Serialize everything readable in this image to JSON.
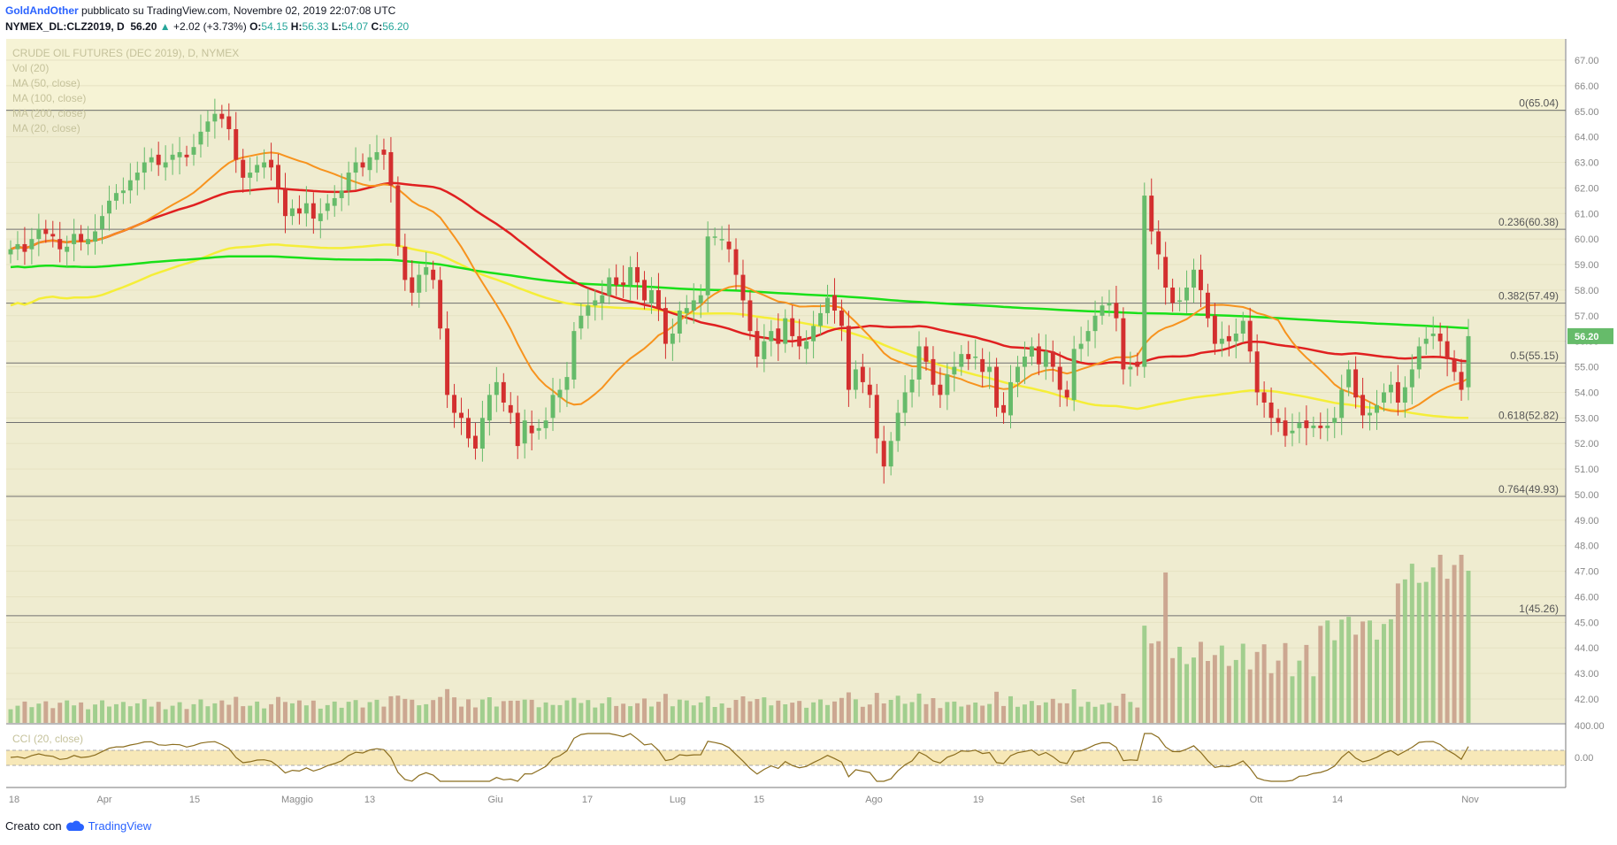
{
  "header": {
    "author": "GoldAndOther",
    "published": "pubblicato su TradingView.com, Novembre 02, 2019 22:07:08 UTC",
    "symbol": "NYMEX_DL:CLZ2019, D",
    "last": "56.20",
    "change": "+2.02 (+3.73%)",
    "o_label": "O:",
    "o": "54.15",
    "h_label": "H:",
    "h": "56.33",
    "l_label": "L:",
    "l": "54.07",
    "c_label": "C:",
    "c": "56.20"
  },
  "legend": {
    "title": "CRUDE OIL FUTURES (DEC 2019), D, NYMEX",
    "items": [
      "Vol (20)",
      "MA (50, close)",
      "MA (100, close)",
      "MA (200, close)",
      "MA (20, close)"
    ]
  },
  "cci_label": "CCI (20, close)",
  "footer": {
    "prefix": "Creato con",
    "brand": "TradingView"
  },
  "colors": {
    "up": "#66bb6a",
    "down": "#d32f2f",
    "ma20": "#f7931e",
    "ma50": "#e02020",
    "ma100": "#f5ee38",
    "ma200": "#19e019",
    "fib": "#707070",
    "pane_bg": "#efecd0",
    "cci_band": "#f7e8b8"
  },
  "chart_data": {
    "type": "candlestick",
    "title": "CRUDE OIL FUTURES (DEC 2019), D, NYMEX",
    "ylim": [
      41.3,
      67.8
    ],
    "y_ticks": [
      "42.00",
      "43.00",
      "44.00",
      "45.00",
      "46.00",
      "47.00",
      "48.00",
      "49.00",
      "50.00",
      "51.00",
      "52.00",
      "53.00",
      "54.00",
      "55.00",
      "56.00",
      "57.00",
      "58.00",
      "59.00",
      "60.00",
      "61.00",
      "62.00",
      "63.00",
      "64.00",
      "65.00",
      "66.00",
      "67.00"
    ],
    "x_labels": [
      "18",
      "Apr",
      "15",
      "Maggio",
      "13",
      "Giu",
      "17",
      "Lug",
      "15",
      "Ago",
      "19",
      "Set",
      "16",
      "Ott",
      "14",
      "Nov"
    ],
    "last_price_label": "56.20",
    "fib_levels": [
      {
        "ratio": "0",
        "price": 65.04,
        "label": "0(65.04)"
      },
      {
        "ratio": "0.236",
        "price": 60.38,
        "label": "0.236(60.38)"
      },
      {
        "ratio": "0.382",
        "price": 57.49,
        "label": "0.382(57.49)"
      },
      {
        "ratio": "0.5",
        "price": 55.15,
        "label": "0.5(55.15)"
      },
      {
        "ratio": "0.618",
        "price": 52.82,
        "label": "0.618(52.82)"
      },
      {
        "ratio": "0.764",
        "price": 49.93,
        "label": "0.764(49.93)"
      },
      {
        "ratio": "1",
        "price": 45.26,
        "label": "1(45.26)"
      }
    ],
    "closes": [
      59.6,
      59.8,
      59.5,
      60.0,
      60.4,
      60.2,
      60.1,
      59.6,
      59.7,
      60.2,
      59.9,
      60.0,
      60.3,
      60.9,
      61.5,
      61.8,
      61.9,
      62.3,
      62.6,
      63.0,
      63.2,
      62.9,
      63.0,
      63.3,
      63.4,
      63.2,
      63.6,
      64.2,
      64.6,
      64.9,
      64.7,
      64.3,
      63.1,
      62.4,
      62.6,
      62.9,
      63.0,
      62.8,
      62.0,
      60.9,
      61.2,
      61.0,
      61.4,
      60.8,
      61.0,
      61.4,
      61.6,
      61.9,
      62.6,
      63.0,
      62.8,
      63.2,
      63.4,
      63.3,
      62.1,
      59.7,
      58.4,
      57.9,
      58.6,
      58.9,
      58.4,
      56.5,
      53.9,
      53.2,
      53.0,
      52.2,
      51.8,
      53.0,
      53.9,
      54.4,
      53.6,
      53.2,
      51.9,
      52.9,
      52.4,
      52.6,
      52.9,
      53.9,
      54.1,
      54.6,
      56.4,
      57.0,
      57.4,
      57.6,
      57.8,
      58.5,
      58.2,
      58.2,
      58.9,
      58.3,
      57.6,
      58.0,
      57.3,
      55.9,
      56.3,
      57.2,
      57.3,
      57.6,
      57.8,
      60.1,
      60.1,
      60.0,
      59.6,
      58.6,
      57.6,
      56.4,
      55.4,
      56.0,
      56.4,
      55.9,
      56.9,
      56.2,
      55.8,
      56.0,
      56.6,
      57.1,
      57.7,
      57.2,
      56.6,
      54.1,
      54.9,
      54.4,
      53.9,
      52.2,
      51.1,
      52.1,
      53.2,
      54.0,
      54.5,
      55.8,
      55.2,
      54.3,
      53.9,
      54.7,
      55.0,
      55.5,
      55.3,
      55.4,
      54.8,
      55.0,
      53.4,
      53.2,
      54.4,
      55.0,
      55.4,
      55.8,
      55.1,
      55.6,
      55.0,
      54.1,
      53.8,
      55.7,
      55.9,
      56.4,
      57.0,
      57.4,
      57.5,
      56.9,
      54.9,
      55.0,
      55.0,
      61.7,
      60.3,
      59.4,
      58.1,
      57.5,
      57.6,
      58.1,
      58.8,
      58.0,
      56.9,
      55.9,
      56.1,
      56.0,
      56.3,
      56.8,
      55.6,
      54.0,
      53.6,
      53.0,
      52.8,
      52.3,
      52.5,
      52.8,
      52.6,
      52.7,
      52.6,
      52.7,
      53.0,
      54.1,
      54.9,
      53.8,
      53.1,
      53.2,
      53.5,
      54.0,
      54.3,
      53.6,
      54.2,
      54.9,
      55.8,
      56.1,
      56.3,
      56.0,
      55.3,
      54.8,
      54.1,
      56.2
    ],
    "opens": [
      59.4,
      59.6,
      59.8,
      59.6,
      60.0,
      60.4,
      60.2,
      60.0,
      59.5,
      59.8,
      60.2,
      59.8,
      59.9,
      60.4,
      61.0,
      61.5,
      61.8,
      61.9,
      62.3,
      62.6,
      63.0,
      63.3,
      62.8,
      63.1,
      63.2,
      63.3,
      63.3,
      63.7,
      64.2,
      64.6,
      64.9,
      64.8,
      64.3,
      63.1,
      62.4,
      62.6,
      62.8,
      63.1,
      62.9,
      62.0,
      60.9,
      61.2,
      61.0,
      61.4,
      60.7,
      61.1,
      61.3,
      61.6,
      61.9,
      62.6,
      63.0,
      62.7,
      63.1,
      63.5,
      63.4,
      62.1,
      59.7,
      58.5,
      57.9,
      58.6,
      58.8,
      58.4,
      56.5,
      53.9,
      53.2,
      53.0,
      52.3,
      51.8,
      52.9,
      53.9,
      54.4,
      53.5,
      53.2,
      52.0,
      52.7,
      52.5,
      52.6,
      53.0,
      53.8,
      54.1,
      54.5,
      56.5,
      57.0,
      57.4,
      57.5,
      57.8,
      58.5,
      58.3,
      58.2,
      58.9,
      58.4,
      57.5,
      58.0,
      57.3,
      55.9,
      56.3,
      57.1,
      57.2,
      57.5,
      57.8,
      60.1,
      60.0,
      59.9,
      59.6,
      58.6,
      57.6,
      56.4,
      55.3,
      56.0,
      56.5,
      55.9,
      56.9,
      56.2,
      55.7,
      56.0,
      56.6,
      57.1,
      57.8,
      57.2,
      56.6,
      54.1,
      55.0,
      54.3,
      53.9,
      52.1,
      51.1,
      52.1,
      53.2,
      54.0,
      54.5,
      55.8,
      55.3,
      54.3,
      53.9,
      54.7,
      55.0,
      55.5,
      55.4,
      55.3,
      54.8,
      55.0,
      53.5,
      53.1,
      54.4,
      55.0,
      55.4,
      55.8,
      55.0,
      55.6,
      55.0,
      54.1,
      53.7,
      55.7,
      56.0,
      56.4,
      57.0,
      57.4,
      57.5,
      56.9,
      54.9,
      55.2,
      55.0,
      61.7,
      60.3,
      59.3,
      58.1,
      57.6,
      57.6,
      58.1,
      58.8,
      57.9,
      57.0,
      55.9,
      56.2,
      56.0,
      56.3,
      56.8,
      55.6,
      54.0,
      53.6,
      53.0,
      52.9,
      52.4,
      52.6,
      52.9,
      52.6,
      52.7,
      52.6,
      52.8,
      53.0,
      54.2,
      54.9,
      53.9,
      53.1,
      53.2,
      53.6,
      54.0,
      54.4,
      53.6,
      54.2,
      54.9,
      55.9,
      56.2,
      56.3,
      56.0,
      55.3,
      54.8,
      54.2
    ]
  }
}
